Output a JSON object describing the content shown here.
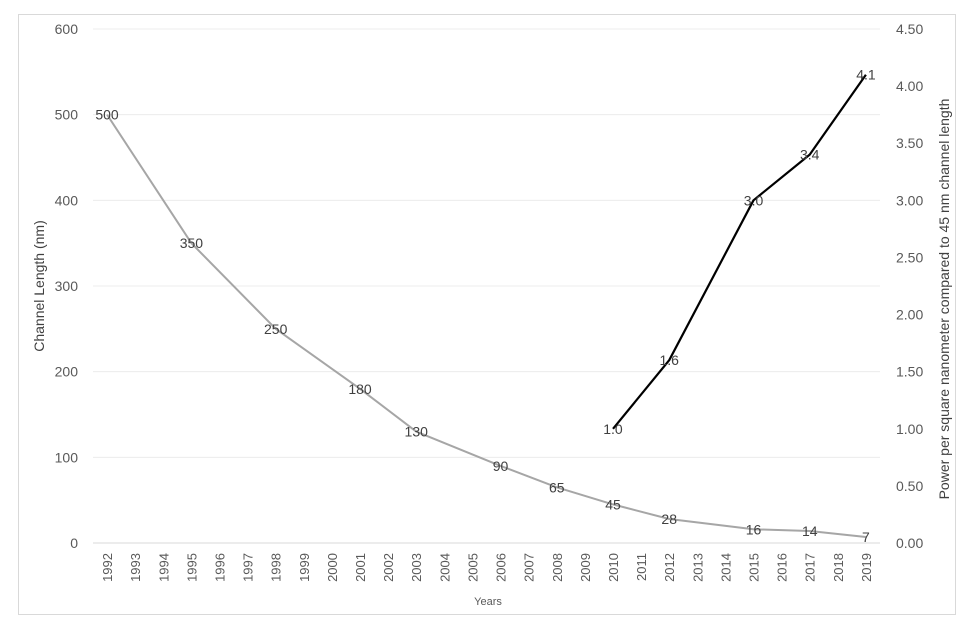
{
  "chart_data": {
    "type": "line",
    "categories": [
      "1992",
      "1993",
      "1994",
      "1995",
      "1996",
      "1997",
      "1998",
      "1999",
      "2000",
      "2001",
      "2002",
      "2003",
      "2004",
      "2005",
      "2006",
      "2007",
      "2008",
      "2009",
      "2010",
      "2011",
      "2012",
      "2013",
      "2014",
      "2015",
      "2016",
      "2017",
      "2018",
      "2019"
    ],
    "xlabel": "Years",
    "ylabel": "Channel Length (nm)",
    "y2label": "Power  per square nanometer compared to 45 nm channel length",
    "ylim": [
      0,
      600
    ],
    "yticks": [
      "0",
      "100",
      "200",
      "300",
      "400",
      "500",
      "600"
    ],
    "y2lim": [
      0,
      4.5
    ],
    "y2ticks": [
      "0.00",
      "0.50",
      "1.00",
      "1.50",
      "2.00",
      "2.50",
      "3.00",
      "3.50",
      "4.00",
      "4.50"
    ],
    "grid": true,
    "series": [
      {
        "axis": "left",
        "color": "#a6a6a6",
        "points": [
          {
            "x": "1992",
            "y": 500,
            "label": "500"
          },
          {
            "x": "1995",
            "y": 350,
            "label": "350"
          },
          {
            "x": "1998",
            "y": 250,
            "label": "250"
          },
          {
            "x": "2001",
            "y": 180,
            "label": "180"
          },
          {
            "x": "2003",
            "y": 130,
            "label": "130"
          },
          {
            "x": "2006",
            "y": 90,
            "label": "90"
          },
          {
            "x": "2008",
            "y": 65,
            "label": "65"
          },
          {
            "x": "2010",
            "y": 45,
            "label": "45"
          },
          {
            "x": "2012",
            "y": 28,
            "label": "28"
          },
          {
            "x": "2015",
            "y": 16,
            "label": "16"
          },
          {
            "x": "2017",
            "y": 14,
            "label": "14"
          },
          {
            "x": "2019",
            "y": 7,
            "label": "7"
          }
        ]
      },
      {
        "axis": "right",
        "color": "#000000",
        "points": [
          {
            "x": "2010",
            "y": 1.0,
            "label": "1.0"
          },
          {
            "x": "2012",
            "y": 1.6,
            "label": "1.6"
          },
          {
            "x": "2015",
            "y": 3.0,
            "label": "3.0"
          },
          {
            "x": "2017",
            "y": 3.4,
            "label": "3.4"
          },
          {
            "x": "2019",
            "y": 4.1,
            "label": "4.1"
          }
        ]
      }
    ]
  }
}
